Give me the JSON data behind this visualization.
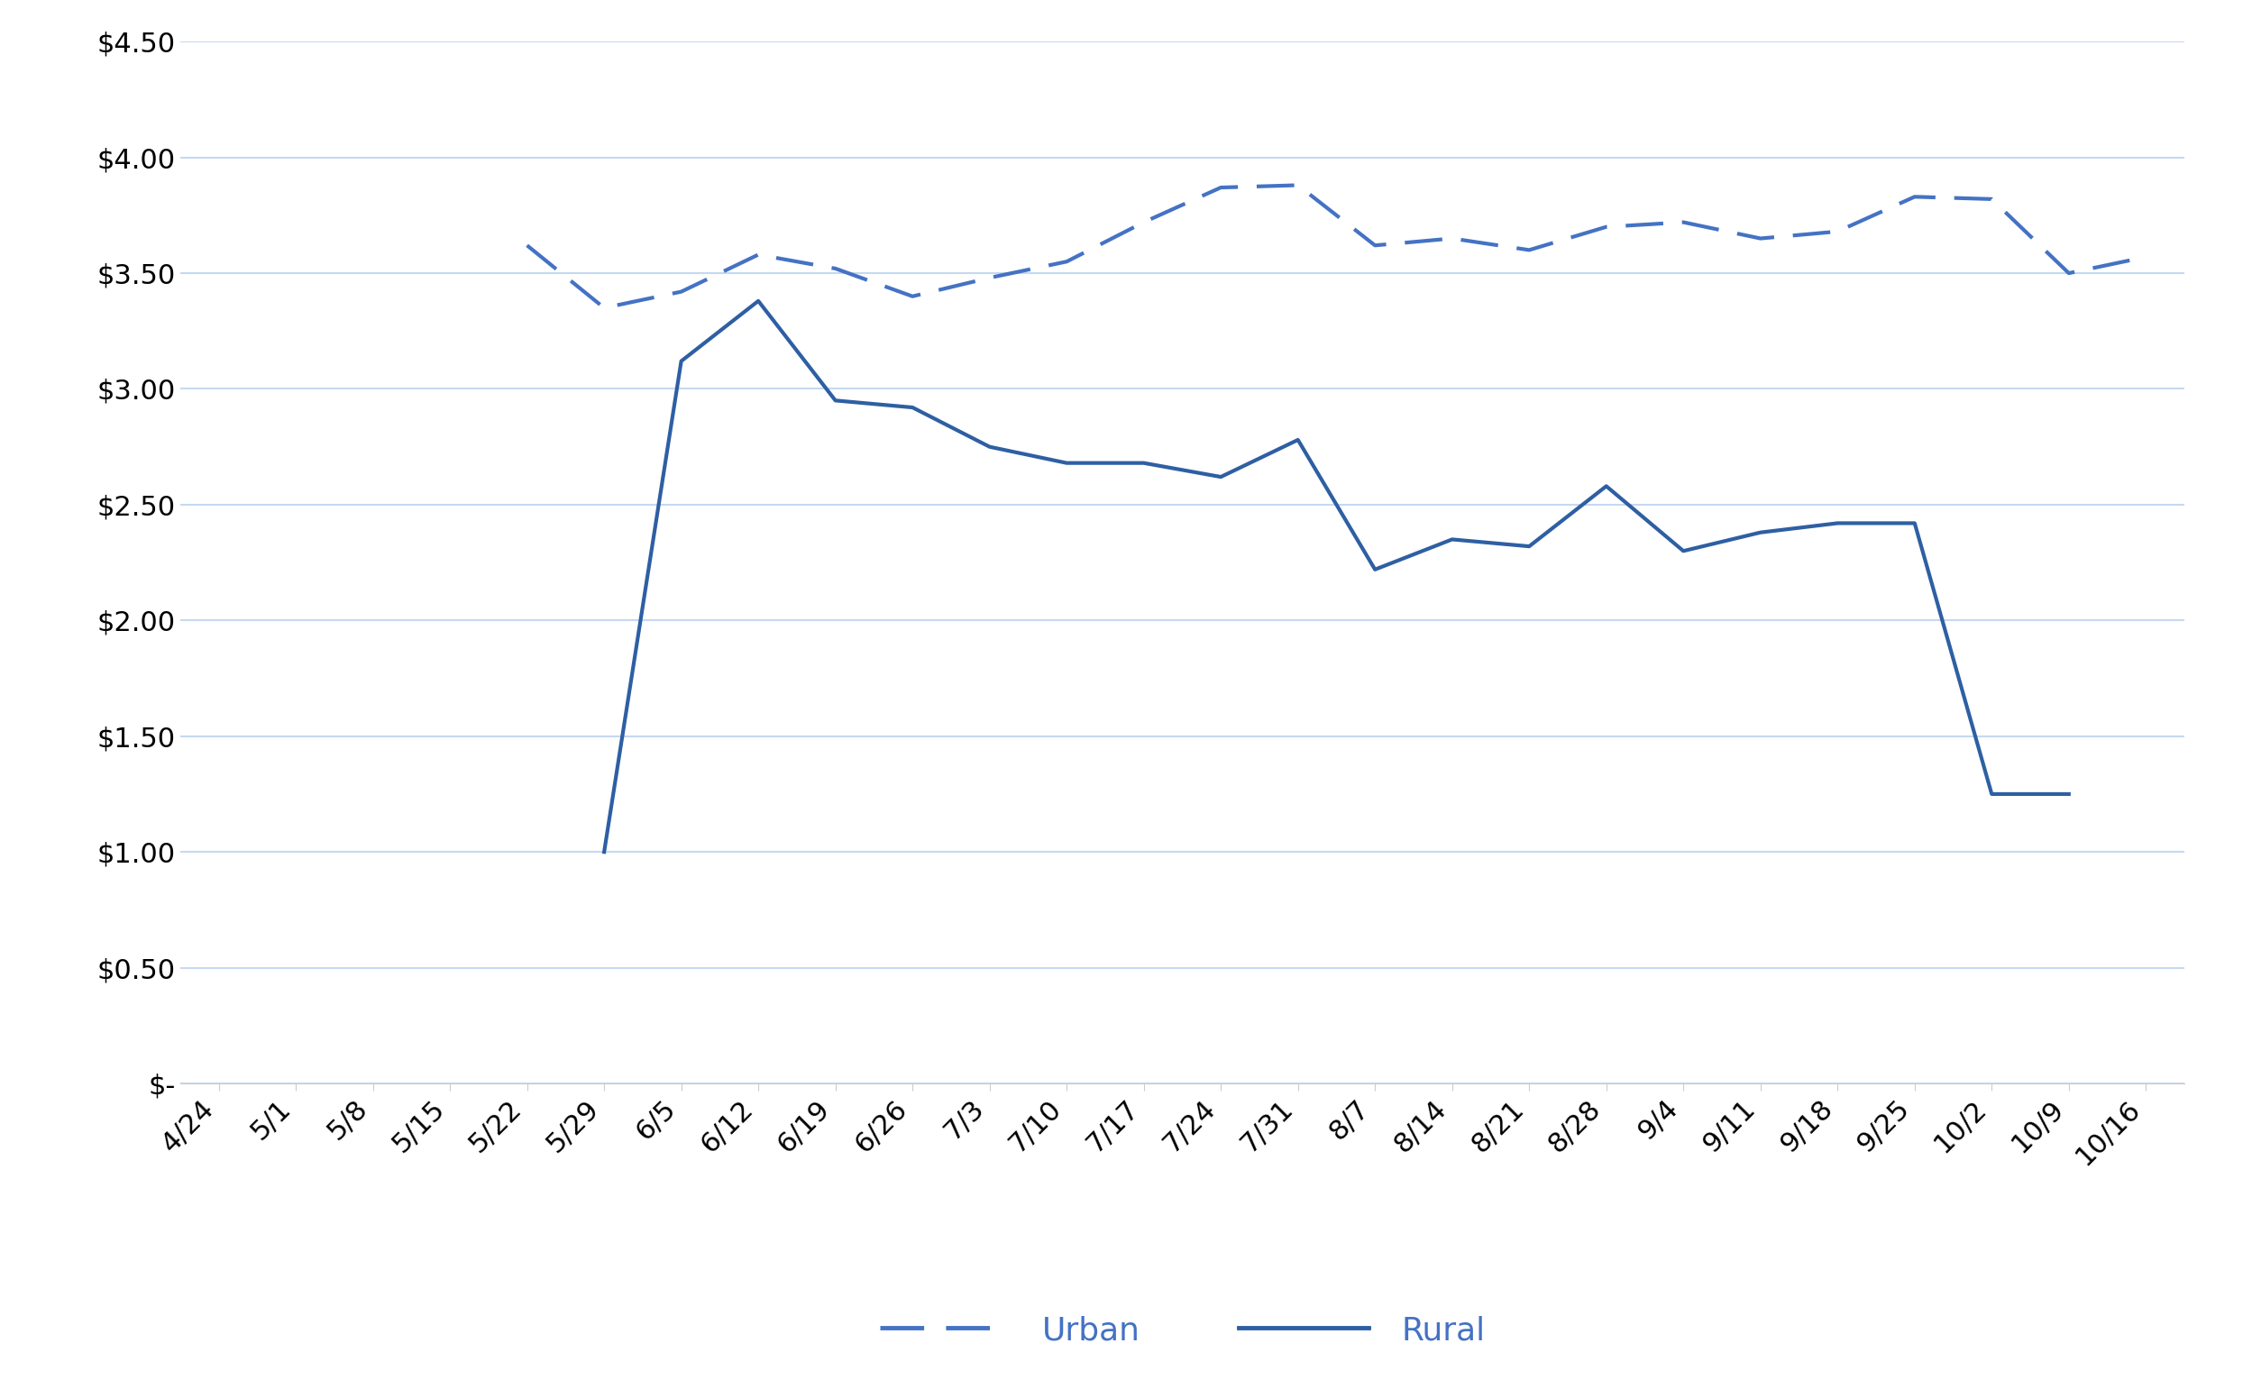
{
  "labels": [
    "4/24",
    "5/1",
    "5/8",
    "5/15",
    "5/22",
    "5/29",
    "6/5",
    "6/12",
    "6/19",
    "6/26",
    "7/3",
    "7/10",
    "7/17",
    "7/24",
    "7/31",
    "8/7",
    "8/14",
    "8/21",
    "8/28",
    "9/4",
    "9/11",
    "9/18",
    "9/25",
    "10/2",
    "10/9",
    "10/16"
  ],
  "urban": [
    null,
    null,
    null,
    null,
    3.62,
    3.35,
    3.42,
    3.58,
    3.52,
    3.4,
    3.48,
    3.55,
    3.72,
    3.87,
    3.88,
    3.62,
    3.65,
    3.6,
    3.7,
    3.72,
    3.65,
    3.68,
    3.83,
    3.82,
    3.5,
    3.57
  ],
  "rural": [
    null,
    null,
    null,
    null,
    null,
    1.0,
    3.12,
    3.38,
    2.95,
    2.92,
    2.75,
    2.68,
    2.68,
    2.62,
    2.78,
    2.22,
    2.35,
    2.32,
    2.58,
    2.3,
    2.38,
    2.42,
    2.42,
    1.25,
    1.25,
    null
  ],
  "urban_color": "#4472C4",
  "rural_color": "#2E5FA3",
  "ylim_min": 0,
  "ylim_max": 4.5,
  "ytick_step": 0.5,
  "background_color": "#FFFFFF",
  "grid_color": "#C5D9F1",
  "legend_urban": "Urban",
  "legend_rural": "Rural",
  "tick_fontsize": 22,
  "legend_fontsize": 26,
  "line_width": 3.0
}
